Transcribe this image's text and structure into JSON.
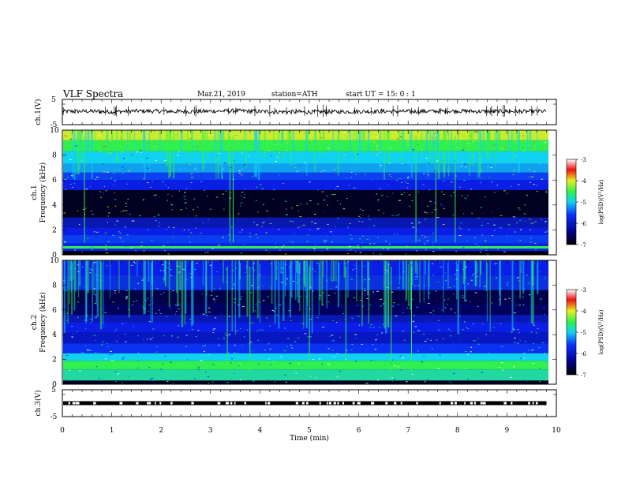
{
  "header": {
    "title": "VLF  Spectra",
    "date": "Mar.21, 2019",
    "station": "station=ATH",
    "start": "start  UT  =    15: 0   : 1"
  },
  "chart_data": [
    {
      "type": "line",
      "panel": "ch1-waveform",
      "ylabel": "ch.1(V)",
      "yticks": [
        "5",
        "-5"
      ],
      "ylim": [
        -5,
        5
      ],
      "xlim": [
        0,
        10
      ],
      "x": [
        0,
        0.5,
        1,
        1.5,
        2,
        2.5,
        3,
        3.5,
        4,
        4.5,
        5,
        5.5,
        6,
        6.5,
        7,
        7.5,
        8,
        8.5,
        9,
        9.5,
        9.8
      ],
      "y": [
        0.2,
        0.3,
        0.1,
        0.4,
        0.3,
        0.2,
        0.3,
        0.5,
        0.2,
        0.1,
        0.0,
        0.1,
        0.2,
        0.3,
        0.2,
        0.3,
        0.4,
        0.2,
        0.3,
        0.2,
        0.3
      ]
    },
    {
      "type": "heatmap",
      "panel": "ch1-spectrogram",
      "ylabel": "ch.1\nFrequency  (kHz)",
      "ylabel_line1": "ch.1",
      "ylabel_line2": "Frequency  (kHz)",
      "yticks": [
        "0",
        "2",
        "4",
        "6",
        "8",
        "10"
      ],
      "ylim": [
        0,
        10
      ],
      "xlim": [
        0,
        10
      ],
      "colorbar": {
        "label": "log(PSD)(V²/Hz)",
        "range": [
          -7,
          -3
        ],
        "ticks": [
          "-3",
          "-4",
          "-5",
          "-6",
          "-7"
        ]
      }
    },
    {
      "type": "heatmap",
      "panel": "ch2-spectrogram",
      "ylabel": "ch.2\nFrequency  (kHz)",
      "ylabel_line1": "ch.2",
      "ylabel_line2": "Frequency  (kHz)",
      "yticks": [
        "0",
        "2",
        "4",
        "6",
        "8",
        "10"
      ],
      "ylim": [
        0,
        10
      ],
      "xlim": [
        0,
        10
      ],
      "colorbar": {
        "label": "log(PSD)(V²/Hz)",
        "range": [
          -7,
          -3
        ],
        "ticks": [
          "-3",
          "-4",
          "-5",
          "-6",
          "-7"
        ]
      }
    },
    {
      "type": "line",
      "panel": "ch3-waveform",
      "ylabel": "ch.3(V)",
      "yticks": [
        "5",
        "-5"
      ],
      "ylim": [
        -5,
        5
      ],
      "xlim": [
        0,
        10
      ],
      "x": [
        0,
        9.8
      ],
      "y": [
        0,
        0
      ]
    }
  ],
  "xaxis": {
    "label": "Time  (min)",
    "ticks": [
      "0",
      "1",
      "2",
      "3",
      "4",
      "5",
      "6",
      "7",
      "8",
      "9",
      "10"
    ]
  },
  "colors": {
    "deep": "#00004a",
    "blue": "#0a1ee6",
    "cyan": "#10d2f0",
    "green": "#30f050",
    "yellow": "#f0e020",
    "red": "#f01010",
    "black": "#000000"
  }
}
